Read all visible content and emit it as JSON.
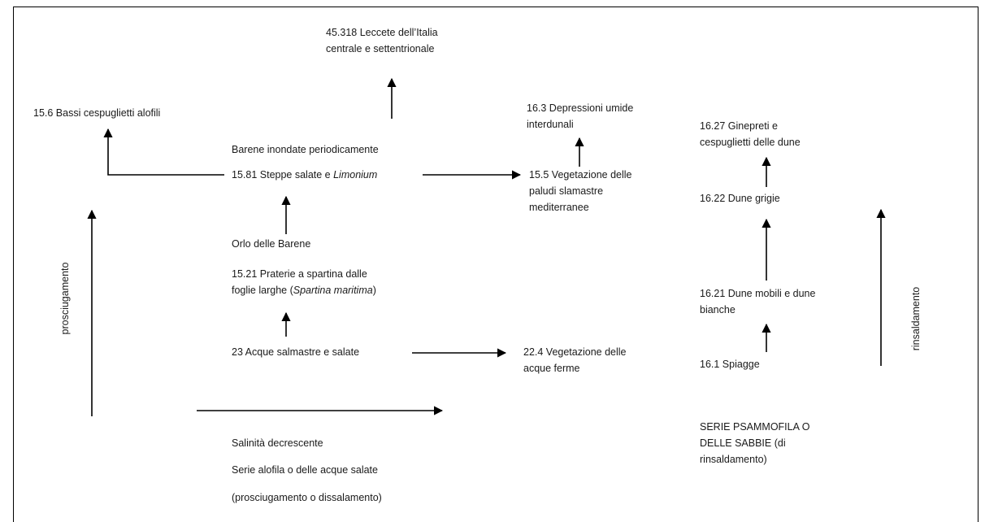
{
  "nodes": {
    "leccete": [
      "45.318 Leccete dell’Italia",
      "centrale e settentrionale"
    ],
    "bassi_cespuglietti": "15.6 Bassi cespuglietti alofili",
    "depressioni_umide": [
      "16.3 Depressioni umide",
      "interdunali"
    ],
    "ginepreti": [
      "16.27 Ginepreti e",
      "cespuglietti delle dune"
    ],
    "barene_inondate": "Barene inondate periodicamente",
    "steppe_salate_prefix": "15.81 Steppe salate e ",
    "steppe_salate_italic": "Limonium",
    "vegetazione_paludi": [
      "15.5 Vegetazione delle",
      "paludi slamastre",
      "mediterranee"
    ],
    "dune_grigie": "16.22 Dune grigie",
    "orlo_barene": "Orlo delle Barene",
    "praterie_line1": "15.21 Praterie a spartina dalle",
    "praterie_line2_prefix": "foglie larghe (",
    "praterie_line2_italic": "Spartina maritima",
    "praterie_line2_suffix": ")",
    "dune_mobili": [
      "16.21 Dune mobili e dune",
      "bianche"
    ],
    "acque_salmastre": "23 Acque salmastre e salate",
    "vegetazione_acque": [
      "22.4 Vegetazione delle",
      "acque ferme"
    ],
    "spiagge": "16.1 Spiagge"
  },
  "axes": {
    "left_vertical": "prosciugamento",
    "right_vertical": "rinsaldamento"
  },
  "captions": {
    "salinita": "Salinità decrescente",
    "serie_alofila": "Serie alofila o delle acque salate",
    "prosciugamento_dissalamento": "(prosciugamento o dissalamento)",
    "serie_psammofila": [
      "SERIE PSAMMOFILA O",
      "DELLE SABBIE (di",
      "rinsaldamento)"
    ]
  }
}
